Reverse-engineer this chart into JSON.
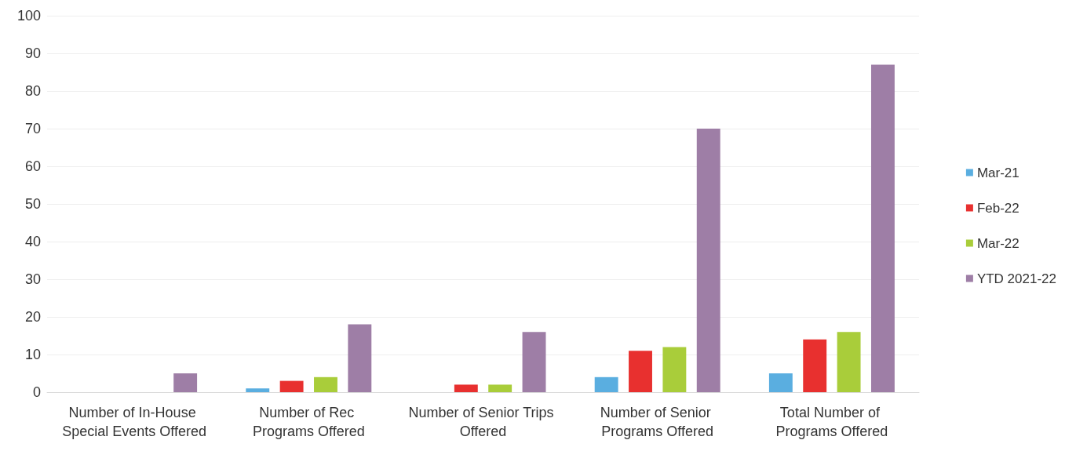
{
  "chart_data": {
    "type": "bar",
    "categories": [
      "Number of In-House Special Events Offered",
      "Number of Rec Programs Offered",
      "Number of Senior Trips Offered",
      "Number of Senior Programs Offered",
      "Total Number of Programs Offered"
    ],
    "series": [
      {
        "name": "Mar-21",
        "color": "#5aaee0",
        "values": [
          0,
          1,
          0,
          4,
          5
        ]
      },
      {
        "name": "Feb-22",
        "color": "#e8302f",
        "values": [
          0,
          3,
          2,
          11,
          14
        ]
      },
      {
        "name": "Mar-22",
        "color": "#a9cd3a",
        "values": [
          0,
          4,
          2,
          12,
          16
        ]
      },
      {
        "name": "YTD 2021-22",
        "color": "#9e7ea6",
        "values": [
          5,
          18,
          16,
          70,
          87
        ]
      }
    ],
    "ylim": [
      0,
      100
    ],
    "yticks": [
      0,
      10,
      20,
      30,
      40,
      50,
      60,
      70,
      80,
      90,
      100
    ],
    "grid": "y",
    "legend": "right"
  }
}
